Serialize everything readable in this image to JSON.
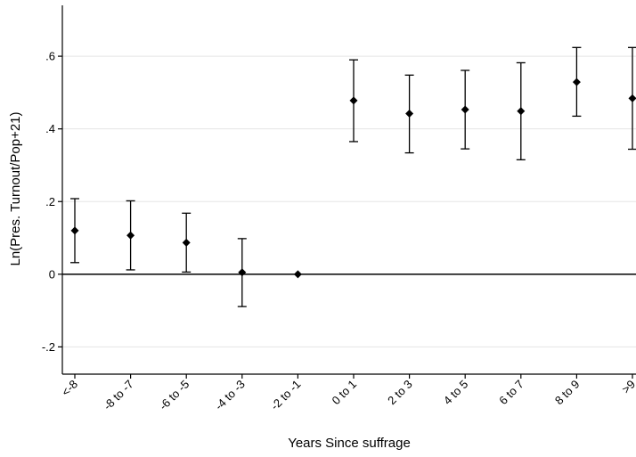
{
  "chart_data": {
    "type": "scatter",
    "title": "",
    "xlabel": "Years Since suffrage",
    "ylabel": "Ln(Pres. Turnout/Pop+21)",
    "categories": [
      "<-8",
      "-8 to -7",
      "-6 to -5",
      "-4 to -3",
      "-2 to -1",
      "0 to 1",
      "2 to 3",
      "4 to 5",
      "6 to 7",
      "8 to 9",
      ">9"
    ],
    "series": [
      {
        "values": [
          0.12,
          0.107,
          0.087,
          0.005,
          0.0,
          0.478,
          0.442,
          0.453,
          0.449,
          0.529,
          0.484
        ],
        "ci_low": [
          0.032,
          0.012,
          0.006,
          -0.089,
          0.0,
          0.365,
          0.334,
          0.345,
          0.315,
          0.435,
          0.344
        ],
        "ci_high": [
          0.208,
          0.202,
          0.168,
          0.098,
          0.0,
          0.59,
          0.548,
          0.561,
          0.582,
          0.624,
          0.624
        ]
      }
    ],
    "yticks": [
      -0.2,
      0,
      0.2,
      0.4,
      0.6
    ],
    "ytick_labels": [
      "-.2",
      "0",
      ".2",
      ".4",
      ".6"
    ],
    "ylim": [
      -0.275,
      0.74
    ],
    "reference_line": 0,
    "grid": true,
    "colors": {
      "marker": "#000000",
      "errorbar": "#000000",
      "grid": "#e5e5e5",
      "axis": "#000000"
    }
  }
}
